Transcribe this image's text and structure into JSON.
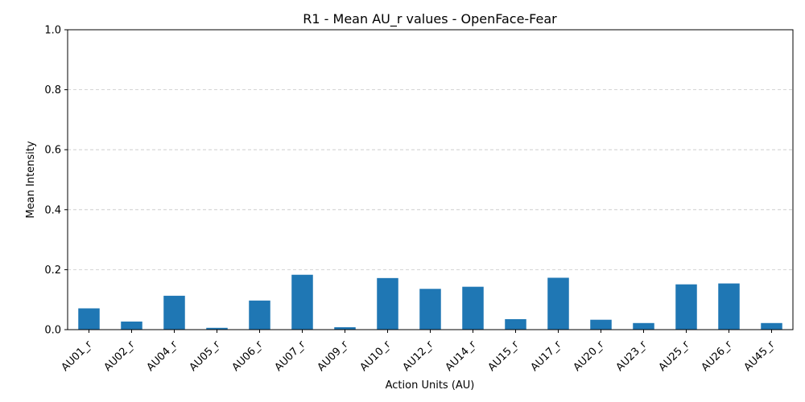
{
  "chart_data": {
    "type": "bar",
    "title": "R1 - Mean AU_r values - OpenFace-Fear",
    "xlabel": "Action Units (AU)",
    "ylabel": "Mean Intensity",
    "ylim": [
      0,
      1.0
    ],
    "yticks": [
      "0.0",
      "0.2",
      "0.4",
      "0.6",
      "0.8",
      "1.0"
    ],
    "grid": "y-dashed",
    "bar_color": "#1f77b4",
    "categories": [
      "AU01_r",
      "AU02_r",
      "AU04_r",
      "AU05_r",
      "AU06_r",
      "AU07_r",
      "AU09_r",
      "AU10_r",
      "AU12_r",
      "AU14_r",
      "AU15_r",
      "AU17_r",
      "AU20_r",
      "AU23_r",
      "AU25_r",
      "AU26_r",
      "AU45_r"
    ],
    "values": [
      0.071,
      0.027,
      0.113,
      0.006,
      0.097,
      0.183,
      0.008,
      0.172,
      0.136,
      0.143,
      0.035,
      0.173,
      0.033,
      0.022,
      0.151,
      0.154,
      0.022
    ]
  }
}
